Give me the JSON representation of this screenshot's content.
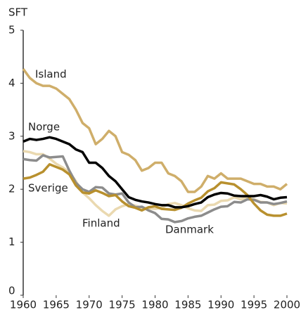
{
  "chart_data": {
    "type": "line",
    "y_label": "SFT",
    "x": [
      1960,
      1961,
      1962,
      1963,
      1964,
      1965,
      1966,
      1967,
      1968,
      1969,
      1970,
      1971,
      1972,
      1973,
      1974,
      1975,
      1976,
      1977,
      1978,
      1979,
      1980,
      1981,
      1982,
      1983,
      1984,
      1985,
      1986,
      1987,
      1988,
      1989,
      1990,
      1991,
      1992,
      1993,
      1994,
      1995,
      1996,
      1997,
      1998,
      1999,
      2000
    ],
    "xlim": [
      1960,
      2000
    ],
    "xticks": [
      1960,
      1965,
      1970,
      1975,
      1980,
      1985,
      1990,
      1995,
      2000
    ],
    "ylim": [
      0,
      5
    ],
    "yticks": [
      0,
      1,
      2,
      3,
      4,
      5
    ],
    "series": [
      {
        "name": "Island",
        "color": "#cfae6a",
        "values": [
          4.27,
          4.1,
          4.0,
          3.95,
          3.95,
          3.9,
          3.8,
          3.7,
          3.5,
          3.25,
          3.15,
          2.85,
          2.95,
          3.1,
          3.0,
          2.7,
          2.65,
          2.55,
          2.35,
          2.4,
          2.5,
          2.5,
          2.3,
          2.25,
          2.15,
          1.95,
          1.95,
          2.05,
          2.25,
          2.2,
          2.3,
          2.2,
          2.2,
          2.2,
          2.15,
          2.1,
          2.1,
          2.05,
          2.05,
          2.0,
          2.1
        ]
      },
      {
        "name": "Finland",
        "color": "#ead9b0",
        "values": [
          2.72,
          2.7,
          2.66,
          2.66,
          2.58,
          2.48,
          2.41,
          2.32,
          2.15,
          1.94,
          1.83,
          1.7,
          1.59,
          1.5,
          1.62,
          1.68,
          1.72,
          1.69,
          1.65,
          1.64,
          1.63,
          1.65,
          1.72,
          1.74,
          1.7,
          1.64,
          1.6,
          1.59,
          1.7,
          1.71,
          1.78,
          1.79,
          1.85,
          1.81,
          1.85,
          1.81,
          1.76,
          1.75,
          1.7,
          1.74,
          1.73
        ]
      },
      {
        "name": "Danmark",
        "color": "#8c8c8c",
        "values": [
          2.57,
          2.55,
          2.54,
          2.64,
          2.6,
          2.61,
          2.62,
          2.35,
          2.12,
          2.0,
          1.95,
          2.04,
          2.03,
          1.92,
          1.9,
          1.92,
          1.75,
          1.66,
          1.67,
          1.6,
          1.55,
          1.44,
          1.43,
          1.38,
          1.4,
          1.45,
          1.48,
          1.5,
          1.56,
          1.62,
          1.67,
          1.68,
          1.76,
          1.75,
          1.81,
          1.8,
          1.75,
          1.75,
          1.72,
          1.74,
          1.77
        ]
      },
      {
        "name": "Sverige",
        "color": "#b8902e",
        "values": [
          2.2,
          2.22,
          2.27,
          2.33,
          2.47,
          2.42,
          2.37,
          2.28,
          2.07,
          1.94,
          1.92,
          1.98,
          1.93,
          1.87,
          1.89,
          1.77,
          1.68,
          1.65,
          1.6,
          1.66,
          1.68,
          1.63,
          1.62,
          1.61,
          1.65,
          1.73,
          1.79,
          1.84,
          1.96,
          2.02,
          2.13,
          2.11,
          2.09,
          2.0,
          1.89,
          1.73,
          1.6,
          1.52,
          1.5,
          1.5,
          1.54
        ]
      },
      {
        "name": "Norge",
        "color": "#000000",
        "values": [
          2.9,
          2.95,
          2.93,
          2.95,
          2.98,
          2.95,
          2.9,
          2.85,
          2.75,
          2.7,
          2.5,
          2.5,
          2.4,
          2.25,
          2.15,
          2.0,
          1.85,
          1.8,
          1.77,
          1.75,
          1.72,
          1.7,
          1.7,
          1.66,
          1.66,
          1.68,
          1.72,
          1.75,
          1.85,
          1.9,
          1.93,
          1.92,
          1.88,
          1.87,
          1.87,
          1.87,
          1.89,
          1.86,
          1.81,
          1.84,
          1.85
        ]
      }
    ]
  }
}
